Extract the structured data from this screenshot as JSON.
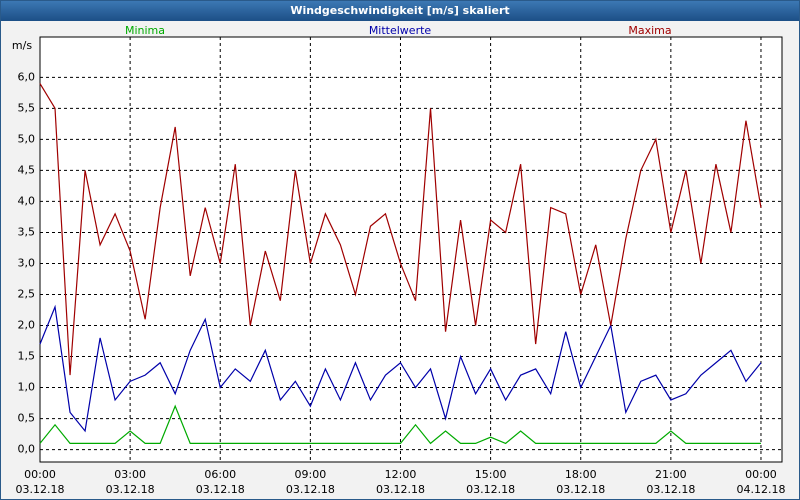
{
  "window_title": "Windgeschwindigkeit [m/s] skaliert",
  "chart_data": {
    "type": "line",
    "y_label": "m/s",
    "x": [
      0,
      0.5,
      1,
      1.5,
      2,
      2.5,
      3,
      3.5,
      4,
      4.5,
      5,
      5.5,
      6,
      6.5,
      7,
      7.5,
      8,
      8.5,
      9,
      9.5,
      10,
      10.5,
      11,
      11.5,
      12,
      12.5,
      13,
      13.5,
      14,
      14.5,
      15,
      15.5,
      16,
      16.5,
      17,
      17.5,
      18,
      18.5,
      19,
      19.5,
      20,
      20.5,
      21,
      21.5,
      22,
      22.5,
      23,
      23.5,
      24
    ],
    "series": [
      {
        "name": "Minima",
        "color": "#00aa00",
        "values": [
          0.1,
          0.4,
          0.1,
          0.1,
          0.1,
          0.1,
          0.3,
          0.1,
          0.1,
          0.7,
          0.1,
          0.1,
          0.1,
          0.1,
          0.1,
          0.1,
          0.1,
          0.1,
          0.1,
          0.1,
          0.1,
          0.1,
          0.1,
          0.1,
          0.1,
          0.4,
          0.1,
          0.3,
          0.1,
          0.1,
          0.2,
          0.1,
          0.3,
          0.1,
          0.1,
          0.1,
          0.1,
          0.1,
          0.1,
          0.1,
          0.1,
          0.1,
          0.3,
          0.1,
          0.1,
          0.1,
          0.1,
          0.1,
          0.1
        ]
      },
      {
        "name": "Mittelwerte",
        "color": "#0000aa",
        "values": [
          1.7,
          2.3,
          0.6,
          0.3,
          1.8,
          0.8,
          1.1,
          1.2,
          1.4,
          0.9,
          1.6,
          2.1,
          1.0,
          1.3,
          1.1,
          1.6,
          0.8,
          1.1,
          0.7,
          1.3,
          0.8,
          1.4,
          0.8,
          1.2,
          1.4,
          1.0,
          1.3,
          0.5,
          1.5,
          0.9,
          1.3,
          0.8,
          1.2,
          1.3,
          0.9,
          1.9,
          1.0,
          1.5,
          2.0,
          0.6,
          1.1,
          1.2,
          0.8,
          0.9,
          1.2,
          1.4,
          1.6,
          1.1,
          1.4
        ]
      },
      {
        "name": "Maxima",
        "color": "#a00000",
        "values": [
          5.9,
          5.5,
          1.2,
          4.5,
          3.3,
          3.8,
          3.2,
          2.1,
          3.9,
          5.2,
          2.8,
          3.9,
          3.0,
          4.6,
          2.0,
          3.2,
          2.4,
          4.5,
          3.0,
          3.8,
          3.3,
          2.5,
          3.6,
          3.8,
          3.0,
          2.4,
          5.5,
          1.9,
          3.7,
          2.0,
          3.7,
          3.5,
          4.6,
          1.7,
          3.9,
          3.8,
          2.5,
          3.3,
          2.0,
          3.4,
          4.5,
          5.0,
          3.5,
          4.5,
          3.0,
          4.6,
          3.5,
          5.3,
          3.9
        ]
      }
    ],
    "xlim": [
      0,
      24.7
    ],
    "ylim": [
      -0.2,
      6.65
    ],
    "xticks": [
      {
        "value": 0,
        "label": "00:00",
        "date": "03.12.18"
      },
      {
        "value": 3,
        "label": "03:00",
        "date": "03.12.18"
      },
      {
        "value": 6,
        "label": "06:00",
        "date": "03.12.18"
      },
      {
        "value": 9,
        "label": "09:00",
        "date": "03.12.18"
      },
      {
        "value": 12,
        "label": "12:00",
        "date": "03.12.18"
      },
      {
        "value": 15,
        "label": "15:00",
        "date": "03.12.18"
      },
      {
        "value": 18,
        "label": "18:00",
        "date": "03.12.18"
      },
      {
        "value": 21,
        "label": "21:00",
        "date": "03.12.18"
      },
      {
        "value": 24,
        "label": "00:00",
        "date": "04.12.18"
      }
    ],
    "yticks": [
      {
        "value": 0,
        "label": "0,0"
      },
      {
        "value": 0.5,
        "label": "0,5"
      },
      {
        "value": 1,
        "label": "1,0"
      },
      {
        "value": 1.5,
        "label": "1,5"
      },
      {
        "value": 2,
        "label": "2,0"
      },
      {
        "value": 2.5,
        "label": "2,5"
      },
      {
        "value": 3,
        "label": "3,0"
      },
      {
        "value": 3.5,
        "label": "3,5"
      },
      {
        "value": 4,
        "label": "4,0"
      },
      {
        "value": 4.5,
        "label": "4,5"
      },
      {
        "value": 5,
        "label": "5,0"
      },
      {
        "value": 5.5,
        "label": "5,5"
      },
      {
        "value": 6,
        "label": "6,0"
      }
    ],
    "grid": true
  }
}
